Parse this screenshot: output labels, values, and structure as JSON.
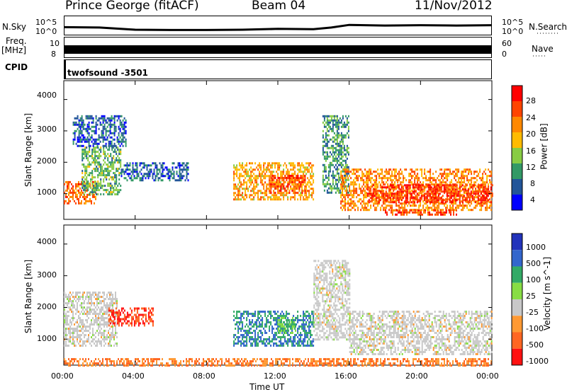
{
  "header": {
    "station": "Prince George (fitACF)",
    "beam": "Beam 04",
    "date": "11/Nov/2012"
  },
  "strips": {
    "nsky_label": "N.Sky",
    "nsky_ticks": [
      "10^5",
      "10^0"
    ],
    "nsearch_label": "N.Search",
    "nsearch_ticks": [
      "10^5",
      "10^0"
    ],
    "freq_label": "Freq.",
    "freq_unit": "[MHz]",
    "freq_ticks": [
      "10",
      "8"
    ],
    "nave_label": "Nave",
    "nave_ticks": [
      "60",
      "0"
    ],
    "cpid_label": "CPID",
    "cpid_value": "twofsound  -3501"
  },
  "axes": {
    "ylabel": "Slant Range [km]",
    "xlabel": "Time UT",
    "yticks": [
      "4000",
      "3000",
      "2000",
      "1000"
    ],
    "xticks": [
      "00:00",
      "04:00",
      "08:00",
      "12:00",
      "16:00",
      "20:00",
      "00:00"
    ]
  },
  "power_scale": {
    "label": "Power [dB]",
    "ticks": [
      "28",
      "24",
      "20",
      "16",
      "12",
      "8",
      "4"
    ],
    "colors": [
      "#ff0000",
      "#ff4400",
      "#ff8800",
      "#ffbb00",
      "#88cc44",
      "#339966",
      "#225599",
      "#0000ff"
    ]
  },
  "velocity_scale": {
    "label": "Velocity [m s^-1]",
    "ticks": [
      "1000",
      "500",
      "100",
      "25",
      "-25",
      "-100",
      "-500",
      "-1000"
    ],
    "colors": [
      "#2233bb",
      "#3366cc",
      "#33aa66",
      "#88dd44",
      "#c8c8c8",
      "#ff9933",
      "#ff6622",
      "#ff1111"
    ]
  },
  "chart_data": [
    {
      "type": "line",
      "title": "N.Sky / N.Search",
      "x": [
        0,
        2,
        4,
        6,
        8,
        10,
        12,
        14,
        15,
        16,
        18,
        20,
        22,
        24
      ],
      "series": [
        {
          "name": "N.Sky",
          "values": [
            80,
            60,
            10,
            8,
            8,
            10,
            20,
            15,
            60,
            500,
            300,
            400,
            300,
            400
          ]
        }
      ],
      "yscale": "log",
      "ylim": [
        1,
        100000
      ]
    },
    {
      "type": "heatmap",
      "title": "Power",
      "xlabel": "Time UT",
      "ylabel": "Slant Range [km]",
      "xlim": [
        0,
        24
      ],
      "ylim": [
        180,
        4600
      ],
      "zlabel": "Power [dB]",
      "regions": [
        {
          "t_start": 0.0,
          "t_end": 1.8,
          "r_start": 700,
          "r_end": 1400,
          "value": 24
        },
        {
          "t_start": 1.0,
          "t_end": 3.2,
          "r_start": 1000,
          "r_end": 2500,
          "value": 12
        },
        {
          "t_start": 0.5,
          "t_end": 3.5,
          "r_start": 2500,
          "r_end": 3500,
          "value": 6
        },
        {
          "t_start": 3.2,
          "t_end": 7.0,
          "r_start": 1400,
          "r_end": 2000,
          "value": 6
        },
        {
          "t_start": 9.5,
          "t_end": 14.0,
          "r_start": 800,
          "r_end": 2000,
          "value": 20
        },
        {
          "t_start": 11.5,
          "t_end": 13.5,
          "r_start": 1000,
          "r_end": 1600,
          "value": 26
        },
        {
          "t_start": 14.5,
          "t_end": 16.0,
          "r_start": 1000,
          "r_end": 3500,
          "value": 10
        },
        {
          "t_start": 15.5,
          "t_end": 24.0,
          "r_start": 500,
          "r_end": 1800,
          "value": 22
        },
        {
          "t_start": 17.0,
          "t_end": 24.0,
          "r_start": 700,
          "r_end": 1300,
          "value": 28
        },
        {
          "t_start": 18.0,
          "t_end": 22.0,
          "r_start": 300,
          "r_end": 500,
          "value": 26
        }
      ]
    },
    {
      "type": "heatmap",
      "title": "Velocity",
      "xlabel": "Time UT",
      "ylabel": "Slant Range [km]",
      "xlim": [
        0,
        24
      ],
      "ylim": [
        180,
        4600
      ],
      "zlabel": "Velocity [m s^-1]",
      "regions": [
        {
          "t_start": 0.0,
          "t_end": 3.0,
          "r_start": 800,
          "r_end": 2500,
          "value": 0
        },
        {
          "t_start": 2.5,
          "t_end": 5.0,
          "r_start": 1400,
          "r_end": 2000,
          "value": -500
        },
        {
          "t_start": 9.5,
          "t_end": 14.0,
          "r_start": 800,
          "r_end": 1900,
          "value": 500
        },
        {
          "t_start": 12.0,
          "t_end": 13.0,
          "r_start": 1200,
          "r_end": 1700,
          "value": 100
        },
        {
          "t_start": 14.0,
          "t_end": 16.0,
          "r_start": 1000,
          "r_end": 3500,
          "value": 0
        },
        {
          "t_start": 16.0,
          "t_end": 24.0,
          "r_start": 500,
          "r_end": 1900,
          "value": 0
        },
        {
          "t_start": 0.0,
          "t_end": 24.0,
          "r_start": 180,
          "r_end": 400,
          "value": -100
        }
      ]
    }
  ]
}
